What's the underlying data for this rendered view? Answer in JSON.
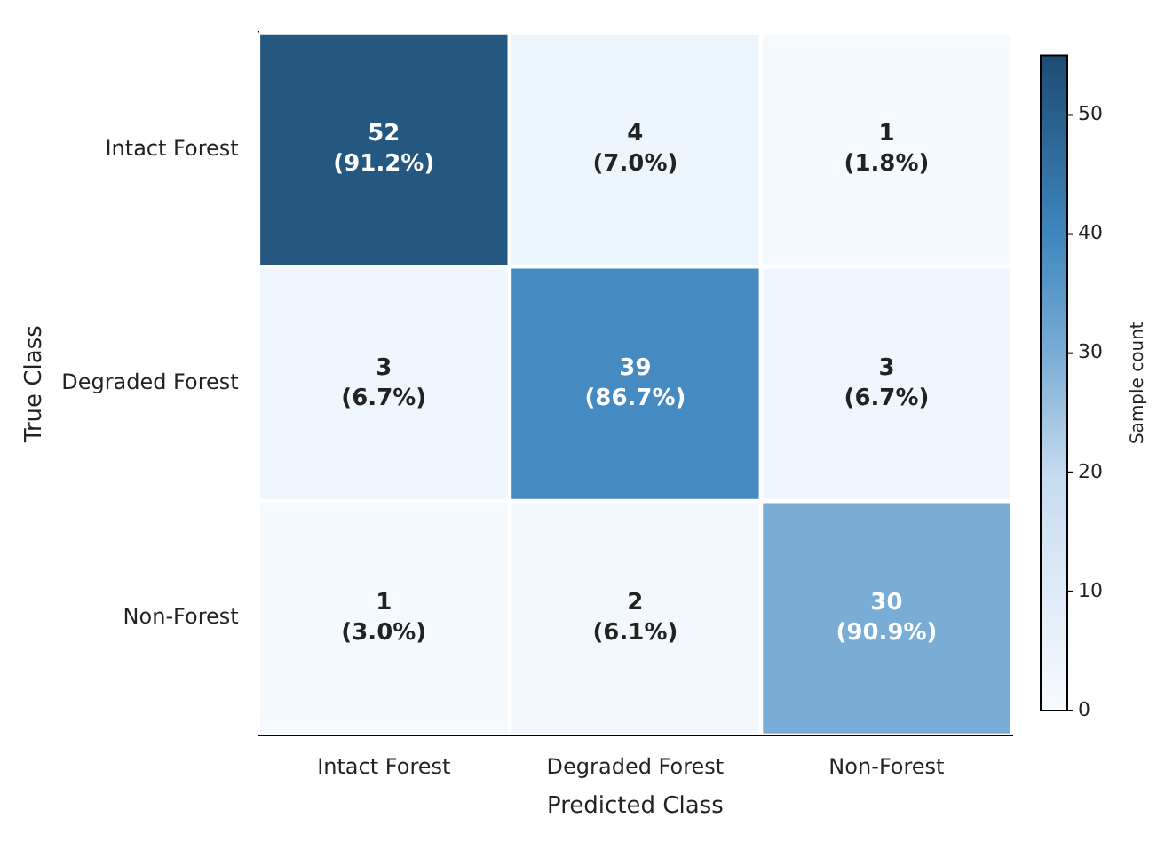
{
  "chart_data": {
    "type": "heatmap",
    "xlabel": "Predicted Class",
    "ylabel": "True Class",
    "clabel": "Sample count",
    "categories": [
      "Intact Forest",
      "Degraded Forest",
      "Non-Forest"
    ],
    "y_categories": [
      "Intact Forest",
      "Degraded Forest",
      "Non-Forest"
    ],
    "cells": [
      [
        52,
        4,
        1
      ],
      [
        3,
        39,
        3
      ],
      [
        1,
        2,
        30
      ]
    ],
    "cell_labels": [
      [
        "52\n(91.2%)",
        "4\n(7.0%)",
        "1\n(1.8%)"
      ],
      [
        "3\n(6.7%)",
        "39\n(86.7%)",
        "3\n(6.7%)"
      ],
      [
        "1\n(3.0%)",
        "2\n(6.1%)",
        "30\n(90.9%)"
      ]
    ],
    "clim": [
      0,
      55
    ],
    "cticks": [
      0,
      10,
      20,
      30,
      40,
      50
    ]
  }
}
